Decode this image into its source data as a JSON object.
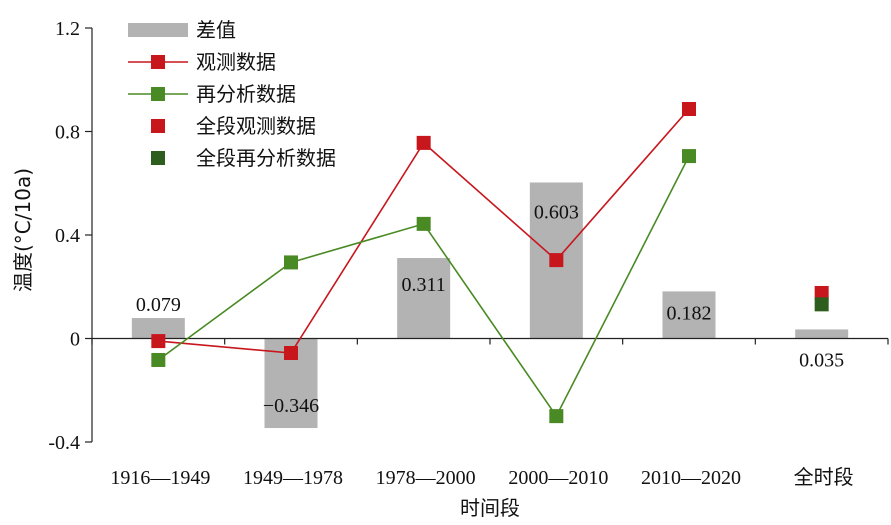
{
  "chart_data": {
    "type": "bar",
    "xlabel": "时间段",
    "ylabel": "温度(°C/10a)",
    "ylim": [
      -0.4,
      1.2
    ],
    "yticks": [
      "-0.4",
      "0",
      "0.4",
      "0.8",
      "1.2"
    ],
    "yticks_values": [
      -0.4,
      0,
      0.4,
      0.8,
      1.2
    ],
    "categories": [
      "1916—1949",
      "1949—1978",
      "1978—2000",
      "2000—2010",
      "2010—2020",
      "全时段"
    ],
    "bar_series": {
      "name": "差值",
      "values": [
        0.079,
        -0.346,
        0.311,
        0.603,
        0.182,
        0.035
      ],
      "labels": [
        "0.079",
        "−0.346",
        "0.311",
        "0.603",
        "0.182",
        "0.035"
      ],
      "color": "#b3b3b3"
    },
    "line_series": [
      {
        "name": "观测数据",
        "values": [
          -0.01,
          -0.056,
          0.756,
          0.303,
          0.887
        ],
        "color": "#c8161d"
      },
      {
        "name": "再分析数据",
        "values": [
          -0.083,
          0.294,
          0.443,
          -0.3,
          0.705
        ],
        "color": "#4a8a24"
      }
    ],
    "point_series": [
      {
        "name": "全段观测数据",
        "category": "全时段",
        "value": 0.176,
        "color": "#c8161d"
      },
      {
        "name": "全段再分析数据",
        "category": "全时段",
        "value": 0.132,
        "color": "#2d5e1e"
      }
    ],
    "legend": [
      "差值",
      "观测数据",
      "再分析数据",
      "全段观测数据",
      "全段再分析数据"
    ],
    "legend_position": "top-left",
    "grid": false
  }
}
